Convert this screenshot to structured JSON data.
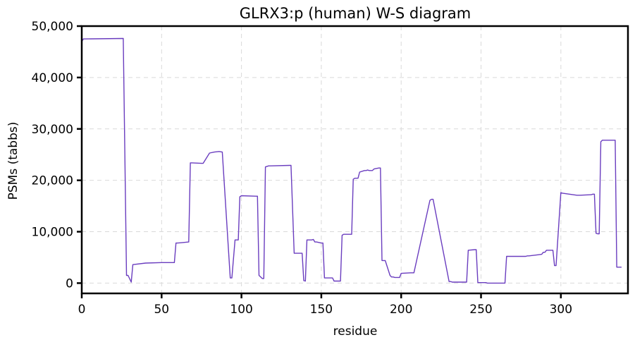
{
  "chart_data": {
    "type": "line",
    "title": "GLRX3:p (human) W-S diagram",
    "xlabel": "residue",
    "ylabel": "PSMs (tabbs)",
    "xlim": [
      0,
      342
    ],
    "ylim": [
      -2000,
      50000
    ],
    "x_ticks": [
      0,
      50,
      100,
      150,
      200,
      250,
      300
    ],
    "y_ticks": [
      0,
      10000,
      20000,
      30000,
      40000,
      50000
    ],
    "x_tick_labels": [
      "0",
      "50",
      "100",
      "150",
      "200",
      "250",
      "300"
    ],
    "y_tick_labels": [
      "0",
      "10,000",
      "20,000",
      "30,000",
      "40,000",
      "50,000"
    ],
    "grid": true,
    "color": "#6a3dbf",
    "series": [
      {
        "x": [
          0,
          1,
          2,
          26,
          28,
          29,
          31,
          32,
          40,
          50,
          58,
          59,
          60,
          67,
          68,
          69,
          75,
          76,
          80,
          83,
          86,
          88,
          93,
          94,
          96,
          97,
          98,
          99,
          100,
          109,
          110,
          111,
          113,
          114,
          115,
          117,
          118,
          130,
          131,
          133,
          134,
          136,
          137,
          138,
          139,
          140,
          141,
          144,
          145,
          146,
          147,
          150,
          151,
          152,
          156,
          157,
          158,
          159,
          160,
          162,
          163,
          164,
          165,
          169,
          170,
          171,
          173,
          174,
          177,
          178,
          179,
          180,
          182,
          183,
          186,
          187,
          188,
          189,
          190,
          193,
          194,
          195,
          196,
          198,
          199,
          200,
          206,
          207,
          208,
          218,
          219,
          220,
          230,
          231,
          232,
          240,
          241,
          242,
          246,
          247,
          248,
          252,
          253,
          254,
          265,
          266,
          267,
          278,
          279,
          280,
          288,
          289,
          290,
          291,
          295,
          296,
          297,
          300,
          301,
          310,
          311,
          312,
          319,
          320,
          321,
          322,
          323,
          324,
          325,
          326,
          333,
          334,
          335,
          336,
          338
        ],
        "y": [
          47000,
          47500,
          47500,
          47600,
          1500,
          1500,
          200,
          3600,
          3900,
          4000,
          4000,
          7800,
          7800,
          8000,
          23400,
          23400,
          23300,
          23300,
          25300,
          25500,
          25600,
          25500,
          1000,
          1000,
          8400,
          8400,
          8400,
          16800,
          17000,
          16900,
          16900,
          1500,
          900,
          900,
          22600,
          22800,
          22800,
          22900,
          22900,
          5800,
          5800,
          5800,
          5800,
          5800,
          500,
          400,
          8400,
          8400,
          8500,
          8000,
          8000,
          7800,
          7800,
          1000,
          1000,
          1000,
          400,
          400,
          400,
          400,
          9300,
          9500,
          9500,
          9500,
          20200,
          20400,
          20400,
          21600,
          21900,
          21900,
          22000,
          21900,
          21900,
          22200,
          22400,
          22400,
          4400,
          4400,
          4400,
          1500,
          1200,
          1200,
          1100,
          1100,
          1100,
          1900,
          2000,
          2000,
          2000,
          16100,
          16300,
          16300,
          300,
          300,
          200,
          200,
          200,
          6400,
          6500,
          6500,
          100,
          100,
          100,
          0,
          0,
          5200,
          5200,
          5200,
          5300,
          5300,
          5600,
          6000,
          6000,
          6400,
          6400,
          3400,
          3400,
          17600,
          17500,
          17100,
          17100,
          17100,
          17200,
          17300,
          17300,
          9700,
          9600,
          9600,
          27500,
          27800,
          27800,
          27800,
          3100,
          3100,
          3100
        ]
      }
    ]
  }
}
